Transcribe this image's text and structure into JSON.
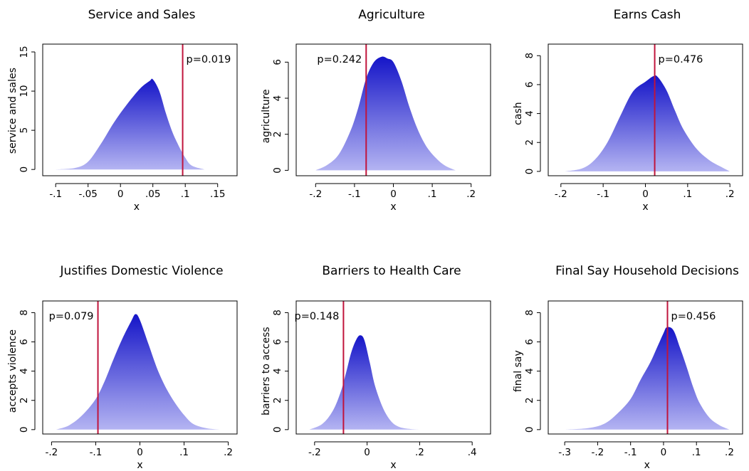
{
  "colors": {
    "fill_top": "#1515c8",
    "fill_bottom": "#b4b4f2",
    "vline": "#c0143c",
    "axis": "#000000"
  },
  "chart_data": [
    {
      "type": "area",
      "title": "Service and Sales",
      "xlabel": "x",
      "ylabel": "service and sales",
      "xlim": [
        -0.12,
        0.18
      ],
      "ylim": [
        -0.8,
        16
      ],
      "xticks": [
        -0.1,
        -0.05,
        0,
        0.05,
        0.1,
        0.15
      ],
      "xtick_labels": [
        "-.1",
        "-.05",
        "0",
        ".05",
        ".1",
        ".15"
      ],
      "yticks": [
        0,
        5,
        10,
        15
      ],
      "ytick_labels": [
        "0",
        "5",
        "10",
        "15"
      ],
      "density": {
        "x": [
          -0.1,
          -0.07,
          -0.05,
          -0.03,
          -0.01,
          0.01,
          0.03,
          0.045,
          0.05,
          0.06,
          0.07,
          0.08,
          0.09,
          0.1,
          0.11,
          0.13
        ],
        "y": [
          0,
          0.2,
          1.0,
          3.3,
          6.0,
          8.3,
          10.3,
          11.3,
          11.5,
          10.0,
          7.2,
          4.8,
          3.0,
          1.5,
          0.5,
          0
        ]
      },
      "line_x": 0.096,
      "p_label": "p=0.019",
      "p_anchor": "right"
    },
    {
      "type": "area",
      "title": "Agriculture",
      "xlabel": "x",
      "ylabel": "agriculture",
      "xlim": [
        -0.25,
        0.25
      ],
      "ylim": [
        -0.3,
        7.0
      ],
      "xticks": [
        -0.2,
        -0.1,
        0,
        0.1,
        0.2
      ],
      "xtick_labels": [
        "-.2",
        "-.1",
        "0",
        ".1",
        ".2"
      ],
      "yticks": [
        0,
        2,
        4,
        6
      ],
      "ytick_labels": [
        "0",
        "2",
        "4",
        "6"
      ],
      "density": {
        "x": [
          -0.2,
          -0.17,
          -0.14,
          -0.11,
          -0.09,
          -0.07,
          -0.05,
          -0.03,
          -0.015,
          0.0,
          0.02,
          0.04,
          0.06,
          0.08,
          0.1,
          0.13,
          0.16
        ],
        "y": [
          0,
          0.3,
          0.9,
          2.2,
          3.5,
          5.1,
          6.0,
          6.3,
          6.2,
          6.0,
          5.0,
          3.6,
          2.4,
          1.5,
          0.9,
          0.3,
          0
        ]
      },
      "line_x": -0.07,
      "p_label": "p=0.242",
      "p_anchor": "left"
    },
    {
      "type": "area",
      "title": "Earns Cash",
      "xlabel": "x",
      "ylabel": "cash",
      "xlim": [
        -0.23,
        0.23
      ],
      "ylim": [
        -0.3,
        8.8
      ],
      "xticks": [
        -0.2,
        -0.1,
        0,
        0.1,
        0.2
      ],
      "xtick_labels": [
        "-.2",
        "-.1",
        "0",
        ".1",
        ".2"
      ],
      "yticks": [
        0,
        2,
        4,
        6,
        8
      ],
      "ytick_labels": [
        "0",
        "2",
        "4",
        "6",
        "8"
      ],
      "density": {
        "x": [
          -0.19,
          -0.15,
          -0.12,
          -0.09,
          -0.06,
          -0.03,
          0.0,
          0.02,
          0.03,
          0.05,
          0.07,
          0.09,
          0.12,
          0.15,
          0.18,
          0.2
        ],
        "y": [
          0,
          0.2,
          0.8,
          2.0,
          3.8,
          5.5,
          6.2,
          6.6,
          6.5,
          5.6,
          4.2,
          2.9,
          1.6,
          0.8,
          0.3,
          0
        ]
      },
      "line_x": 0.022,
      "p_label": "p=0.476",
      "p_anchor": "right"
    },
    {
      "type": "area",
      "title": "Justifies Domestic Violence",
      "xlabel": "x",
      "ylabel": "accepts violence",
      "xlim": [
        -0.22,
        0.22
      ],
      "ylim": [
        -0.3,
        8.8
      ],
      "xticks": [
        -0.2,
        -0.1,
        0,
        0.1,
        0.2
      ],
      "xtick_labels": [
        "-.2",
        "-.1",
        "0",
        ".1",
        ".2"
      ],
      "yticks": [
        0,
        2,
        4,
        6,
        8
      ],
      "ytick_labels": [
        "0",
        "2",
        "4",
        "6",
        "8"
      ],
      "density": {
        "x": [
          -0.19,
          -0.16,
          -0.13,
          -0.1,
          -0.08,
          -0.06,
          -0.04,
          -0.02,
          -0.01,
          0.0,
          0.02,
          0.04,
          0.06,
          0.08,
          0.1,
          0.12,
          0.15,
          0.18
        ],
        "y": [
          0,
          0.3,
          1.0,
          2.1,
          3.3,
          4.8,
          6.2,
          7.4,
          7.9,
          7.5,
          5.8,
          4.1,
          2.8,
          1.8,
          1.0,
          0.4,
          0.1,
          0
        ]
      },
      "line_x": -0.095,
      "p_label": "p=0.079",
      "p_anchor": "left"
    },
    {
      "type": "area",
      "title": "Barriers to Health Care",
      "xlabel": "x",
      "ylabel": "barriers to access",
      "xlim": [
        -0.27,
        0.47
      ],
      "ylim": [
        -0.3,
        8.8
      ],
      "xticks": [
        -0.2,
        0,
        0.2,
        0.4
      ],
      "xtick_labels": [
        "-.2",
        "0",
        ".2",
        ".4"
      ],
      "yticks": [
        0,
        2,
        4,
        6,
        8
      ],
      "ytick_labels": [
        "0",
        "2",
        "4",
        "6",
        "8"
      ],
      "density": {
        "x": [
          -0.22,
          -0.17,
          -0.13,
          -0.1,
          -0.08,
          -0.06,
          -0.04,
          -0.025,
          -0.01,
          0.01,
          0.03,
          0.06,
          0.09,
          0.12,
          0.16,
          0.2
        ],
        "y": [
          0,
          0.4,
          1.3,
          2.6,
          3.9,
          5.3,
          6.2,
          6.45,
          6.1,
          4.6,
          3.0,
          1.5,
          0.6,
          0.2,
          0.05,
          0
        ]
      },
      "line_x": -0.09,
      "p_label": "p=0.148",
      "p_anchor": "left"
    },
    {
      "type": "area",
      "title": "Final Say Household Decisions",
      "xlabel": "x",
      "ylabel": "final say",
      "xlim": [
        -0.35,
        0.24
      ],
      "ylim": [
        -0.3,
        8.8
      ],
      "xticks": [
        -0.3,
        -0.2,
        -0.1,
        0,
        0.1,
        0.2
      ],
      "xtick_labels": [
        "-.3",
        "-.2",
        "-.1",
        "0",
        ".1",
        ".2"
      ],
      "yticks": [
        0,
        2,
        4,
        6,
        8
      ],
      "ytick_labels": [
        "0",
        "2",
        "4",
        "6",
        "8"
      ],
      "density": {
        "x": [
          -0.3,
          -0.23,
          -0.18,
          -0.14,
          -0.1,
          -0.07,
          -0.04,
          -0.02,
          0.0,
          0.01,
          0.03,
          0.05,
          0.07,
          0.09,
          0.11,
          0.14,
          0.17,
          0.2
        ],
        "y": [
          0,
          0.1,
          0.4,
          1.1,
          2.1,
          3.4,
          4.6,
          5.6,
          6.6,
          7.0,
          6.8,
          5.6,
          4.3,
          2.9,
          1.8,
          0.8,
          0.3,
          0
        ]
      },
      "line_x": 0.012,
      "p_label": "p=0.456",
      "p_anchor": "right"
    }
  ]
}
